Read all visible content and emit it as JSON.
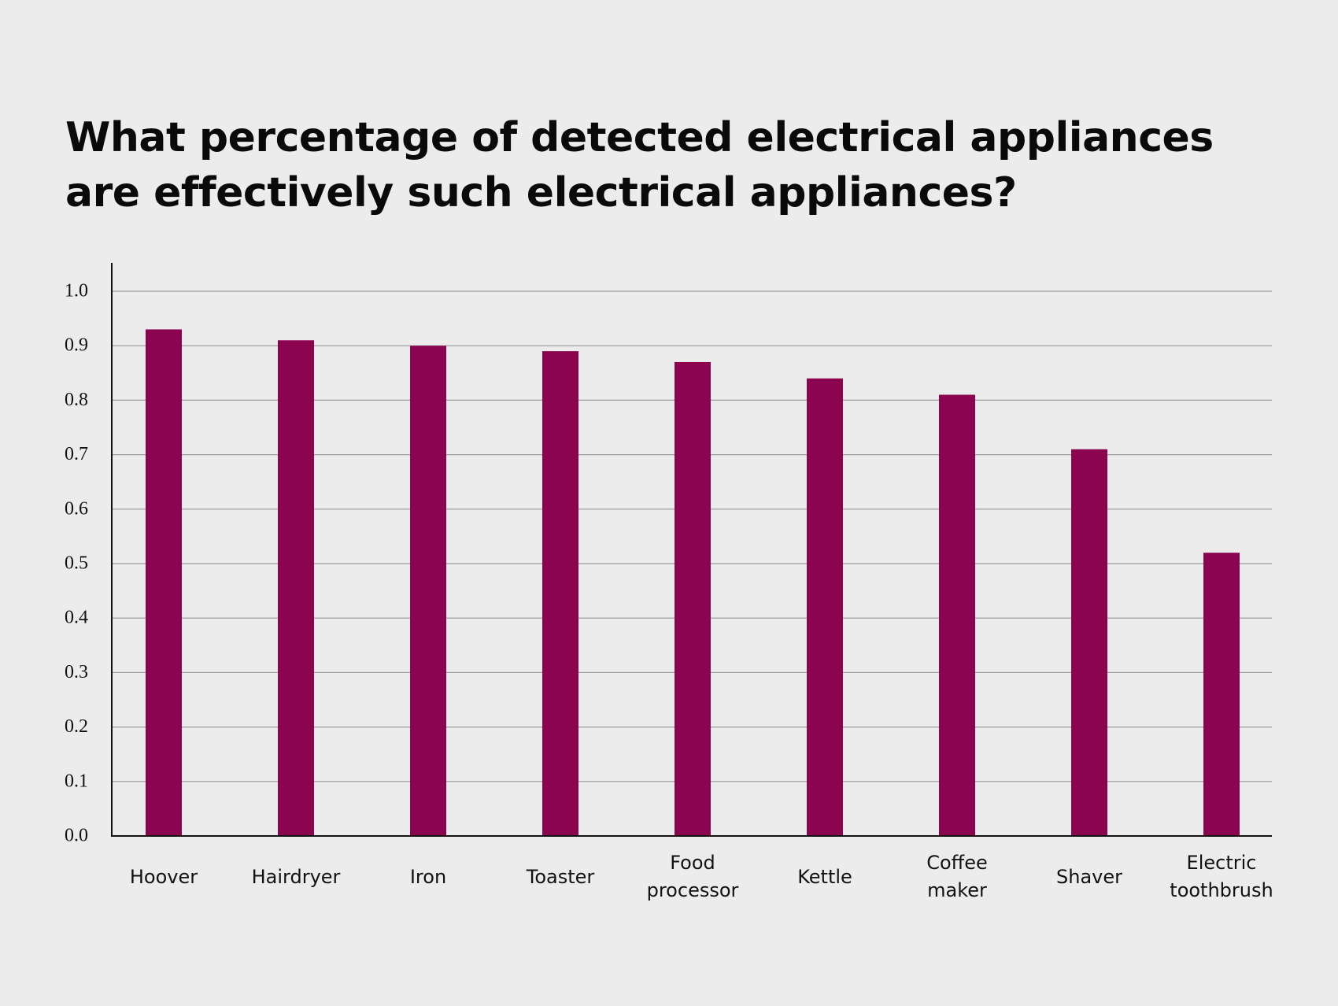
{
  "chart_data": {
    "type": "bar",
    "title_lines": [
      "What percentage of detected electrical appliances",
      "are effectively such electrical appliances?"
    ],
    "categories": [
      [
        "Hoover"
      ],
      [
        "Hairdryer"
      ],
      [
        "Iron"
      ],
      [
        "Toaster"
      ],
      [
        "Food",
        "processor"
      ],
      [
        "Kettle"
      ],
      [
        "Coffee",
        "maker"
      ],
      [
        "Shaver"
      ],
      [
        "Electric",
        "toothbrush"
      ]
    ],
    "values": [
      0.93,
      0.91,
      0.9,
      0.89,
      0.87,
      0.84,
      0.81,
      0.71,
      0.52
    ],
    "yticks": [
      "0.0",
      "0.1",
      "0.2",
      "0.3",
      "0.4",
      "0.5",
      "0.6",
      "0.7",
      "0.8",
      "0.9",
      "1.0"
    ],
    "ylim": [
      0,
      1.0
    ],
    "grid": true,
    "legend": "none",
    "colors": {
      "bar": "#8b0450",
      "grid": "#9a9a9a",
      "axis": "#111111",
      "background": "#ececec"
    }
  }
}
